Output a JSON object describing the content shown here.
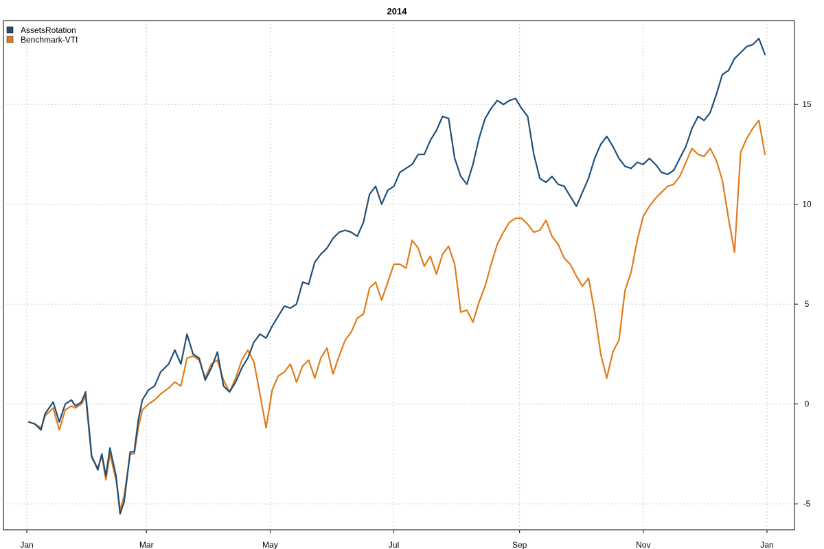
{
  "chart_data": {
    "type": "line",
    "title": "2014",
    "xlabel": "",
    "ylabel": "",
    "x_ticks": [
      "Jan",
      "Mar",
      "May",
      "Jul",
      "Sep",
      "Nov",
      "Jan"
    ],
    "x_tick_dates": [
      "2014-01-01",
      "2014-03-01",
      "2014-05-01",
      "2014-07-01",
      "2014-09-01",
      "2014-11-01",
      "2015-01-01"
    ],
    "xlim": [
      "2014-01-01",
      "2015-01-01"
    ],
    "y_ticks": [
      -5,
      0,
      5,
      10,
      15
    ],
    "y_tick_labels": [
      "-5",
      "0",
      "5",
      "10",
      "15"
    ],
    "ylim": [
      -6.3,
      19.2
    ],
    "y_axis_side": "right",
    "grid": true,
    "legend_position": "top-left",
    "series": [
      {
        "name": "AssetsRotation",
        "color": "#1f4e79",
        "points": [
          [
            "2014-01-02",
            -0.9
          ],
          [
            "2014-01-05",
            -1.0
          ],
          [
            "2014-01-08",
            -1.3
          ],
          [
            "2014-01-10",
            -0.5
          ],
          [
            "2014-01-14",
            0.1
          ],
          [
            "2014-01-17",
            -0.9
          ],
          [
            "2014-01-20",
            0.0
          ],
          [
            "2014-01-23",
            0.2
          ],
          [
            "2014-01-25",
            -0.1
          ],
          [
            "2014-01-28",
            0.1
          ],
          [
            "2014-01-30",
            0.6
          ],
          [
            "2014-02-02",
            -2.6
          ],
          [
            "2014-02-05",
            -3.3
          ],
          [
            "2014-02-07",
            -2.5
          ],
          [
            "2014-02-09",
            -3.6
          ],
          [
            "2014-02-11",
            -2.2
          ],
          [
            "2014-02-14",
            -3.6
          ],
          [
            "2014-02-16",
            -5.5
          ],
          [
            "2014-02-18",
            -4.9
          ],
          [
            "2014-02-21",
            -2.4
          ],
          [
            "2014-02-23",
            -2.4
          ],
          [
            "2014-02-25",
            -0.8
          ],
          [
            "2014-02-27",
            0.2
          ],
          [
            "2014-03-02",
            0.7
          ],
          [
            "2014-03-05",
            0.9
          ],
          [
            "2014-03-08",
            1.6
          ],
          [
            "2014-03-12",
            2.0
          ],
          [
            "2014-03-15",
            2.7
          ],
          [
            "2014-03-18",
            2.0
          ],
          [
            "2014-03-21",
            3.5
          ],
          [
            "2014-03-24",
            2.5
          ],
          [
            "2014-03-27",
            2.3
          ],
          [
            "2014-03-30",
            1.2
          ],
          [
            "2014-04-02",
            1.8
          ],
          [
            "2014-04-05",
            2.6
          ],
          [
            "2014-04-08",
            0.9
          ],
          [
            "2014-04-11",
            0.6
          ],
          [
            "2014-04-14",
            1.1
          ],
          [
            "2014-04-17",
            1.8
          ],
          [
            "2014-04-20",
            2.3
          ],
          [
            "2014-04-23",
            3.1
          ],
          [
            "2014-04-26",
            3.5
          ],
          [
            "2014-04-29",
            3.3
          ],
          [
            "2014-05-02",
            3.9
          ],
          [
            "2014-05-05",
            4.4
          ],
          [
            "2014-05-08",
            4.9
          ],
          [
            "2014-05-11",
            4.8
          ],
          [
            "2014-05-14",
            5.0
          ],
          [
            "2014-05-17",
            6.1
          ],
          [
            "2014-05-20",
            6.0
          ],
          [
            "2014-05-23",
            7.1
          ],
          [
            "2014-05-26",
            7.5
          ],
          [
            "2014-05-29",
            7.8
          ],
          [
            "2014-06-01",
            8.3
          ],
          [
            "2014-06-04",
            8.6
          ],
          [
            "2014-06-07",
            8.7
          ],
          [
            "2014-06-10",
            8.6
          ],
          [
            "2014-06-13",
            8.4
          ],
          [
            "2014-06-16",
            9.1
          ],
          [
            "2014-06-19",
            10.5
          ],
          [
            "2014-06-22",
            10.9
          ],
          [
            "2014-06-25",
            10.0
          ],
          [
            "2014-06-28",
            10.7
          ],
          [
            "2014-07-01",
            10.9
          ],
          [
            "2014-07-04",
            11.6
          ],
          [
            "2014-07-07",
            11.8
          ],
          [
            "2014-07-10",
            12.0
          ],
          [
            "2014-07-13",
            12.5
          ],
          [
            "2014-07-16",
            12.5
          ],
          [
            "2014-07-19",
            13.2
          ],
          [
            "2014-07-22",
            13.7
          ],
          [
            "2014-07-25",
            14.4
          ],
          [
            "2014-07-28",
            14.3
          ],
          [
            "2014-07-31",
            12.3
          ],
          [
            "2014-08-03",
            11.4
          ],
          [
            "2014-08-06",
            11.0
          ],
          [
            "2014-08-09",
            12.0
          ],
          [
            "2014-08-12",
            13.3
          ],
          [
            "2014-08-15",
            14.3
          ],
          [
            "2014-08-18",
            14.8
          ],
          [
            "2014-08-21",
            15.2
          ],
          [
            "2014-08-24",
            15.0
          ],
          [
            "2014-08-27",
            15.2
          ],
          [
            "2014-08-30",
            15.3
          ],
          [
            "2014-09-02",
            14.8
          ],
          [
            "2014-09-05",
            14.4
          ],
          [
            "2014-09-08",
            12.5
          ],
          [
            "2014-09-11",
            11.3
          ],
          [
            "2014-09-14",
            11.1
          ],
          [
            "2014-09-17",
            11.4
          ],
          [
            "2014-09-20",
            11.0
          ],
          [
            "2014-09-23",
            10.9
          ],
          [
            "2014-09-26",
            10.4
          ],
          [
            "2014-09-29",
            9.9
          ],
          [
            "2014-10-02",
            10.6
          ],
          [
            "2014-10-05",
            11.3
          ],
          [
            "2014-10-08",
            12.3
          ],
          [
            "2014-10-11",
            13.0
          ],
          [
            "2014-10-14",
            13.4
          ],
          [
            "2014-10-17",
            12.9
          ],
          [
            "2014-10-20",
            12.3
          ],
          [
            "2014-10-23",
            11.9
          ],
          [
            "2014-10-26",
            11.8
          ],
          [
            "2014-10-29",
            12.1
          ],
          [
            "2014-11-01",
            12.0
          ],
          [
            "2014-11-04",
            12.3
          ],
          [
            "2014-11-07",
            12.0
          ],
          [
            "2014-11-10",
            11.6
          ],
          [
            "2014-11-13",
            11.5
          ],
          [
            "2014-11-16",
            11.7
          ],
          [
            "2014-11-19",
            12.3
          ],
          [
            "2014-11-22",
            12.9
          ],
          [
            "2014-11-25",
            13.8
          ],
          [
            "2014-11-28",
            14.4
          ],
          [
            "2014-12-01",
            14.2
          ],
          [
            "2014-12-04",
            14.6
          ],
          [
            "2014-12-07",
            15.5
          ],
          [
            "2014-12-10",
            16.5
          ],
          [
            "2014-12-13",
            16.7
          ],
          [
            "2014-12-16",
            17.3
          ],
          [
            "2014-12-19",
            17.6
          ],
          [
            "2014-12-22",
            17.9
          ],
          [
            "2014-12-25",
            18.0
          ],
          [
            "2014-12-28",
            18.3
          ],
          [
            "2014-12-31",
            17.5
          ]
        ]
      },
      {
        "name": "Benchmark-VTI",
        "color": "#e07b1a",
        "points": [
          [
            "2014-01-02",
            -0.9
          ],
          [
            "2014-01-05",
            -1.0
          ],
          [
            "2014-01-08",
            -1.2
          ],
          [
            "2014-01-10",
            -0.6
          ],
          [
            "2014-01-14",
            -0.2
          ],
          [
            "2014-01-17",
            -1.3
          ],
          [
            "2014-01-20",
            -0.3
          ],
          [
            "2014-01-23",
            -0.1
          ],
          [
            "2014-01-25",
            -0.2
          ],
          [
            "2014-01-28",
            0.0
          ],
          [
            "2014-01-30",
            0.4
          ],
          [
            "2014-02-02",
            -2.7
          ],
          [
            "2014-02-05",
            -3.2
          ],
          [
            "2014-02-07",
            -2.6
          ],
          [
            "2014-02-09",
            -3.8
          ],
          [
            "2014-02-11",
            -2.5
          ],
          [
            "2014-02-14",
            -3.8
          ],
          [
            "2014-02-16",
            -5.3
          ],
          [
            "2014-02-18",
            -4.6
          ],
          [
            "2014-02-21",
            -2.5
          ],
          [
            "2014-02-23",
            -2.5
          ],
          [
            "2014-02-25",
            -1.2
          ],
          [
            "2014-02-27",
            -0.3
          ],
          [
            "2014-03-02",
            0.0
          ],
          [
            "2014-03-05",
            0.2
          ],
          [
            "2014-03-08",
            0.5
          ],
          [
            "2014-03-12",
            0.8
          ],
          [
            "2014-03-15",
            1.1
          ],
          [
            "2014-03-18",
            0.9
          ],
          [
            "2014-03-21",
            2.3
          ],
          [
            "2014-03-24",
            2.4
          ],
          [
            "2014-03-27",
            2.2
          ],
          [
            "2014-03-30",
            1.3
          ],
          [
            "2014-04-02",
            2.0
          ],
          [
            "2014-04-05",
            2.2
          ],
          [
            "2014-04-08",
            1.2
          ],
          [
            "2014-04-11",
            0.6
          ],
          [
            "2014-04-14",
            1.3
          ],
          [
            "2014-04-17",
            2.2
          ],
          [
            "2014-04-20",
            2.7
          ],
          [
            "2014-04-23",
            2.1
          ],
          [
            "2014-04-26",
            0.5
          ],
          [
            "2014-04-29",
            -1.2
          ],
          [
            "2014-05-02",
            0.7
          ],
          [
            "2014-05-05",
            1.4
          ],
          [
            "2014-05-08",
            1.6
          ],
          [
            "2014-05-11",
            2.0
          ],
          [
            "2014-05-14",
            1.1
          ],
          [
            "2014-05-17",
            1.9
          ],
          [
            "2014-05-20",
            2.2
          ],
          [
            "2014-05-23",
            1.3
          ],
          [
            "2014-05-26",
            2.3
          ],
          [
            "2014-05-29",
            2.8
          ],
          [
            "2014-06-01",
            1.5
          ],
          [
            "2014-06-04",
            2.4
          ],
          [
            "2014-06-07",
            3.2
          ],
          [
            "2014-06-10",
            3.6
          ],
          [
            "2014-06-13",
            4.3
          ],
          [
            "2014-06-16",
            4.5
          ],
          [
            "2014-06-19",
            5.8
          ],
          [
            "2014-06-22",
            6.1
          ],
          [
            "2014-06-25",
            5.2
          ],
          [
            "2014-06-28",
            6.1
          ],
          [
            "2014-07-01",
            7.0
          ],
          [
            "2014-07-04",
            7.0
          ],
          [
            "2014-07-07",
            6.8
          ],
          [
            "2014-07-10",
            8.2
          ],
          [
            "2014-07-13",
            7.8
          ],
          [
            "2014-07-16",
            6.9
          ],
          [
            "2014-07-19",
            7.4
          ],
          [
            "2014-07-22",
            6.5
          ],
          [
            "2014-07-25",
            7.5
          ],
          [
            "2014-07-28",
            7.9
          ],
          [
            "2014-07-31",
            7.0
          ],
          [
            "2014-08-03",
            4.6
          ],
          [
            "2014-08-06",
            4.7
          ],
          [
            "2014-08-09",
            4.1
          ],
          [
            "2014-08-12",
            5.1
          ],
          [
            "2014-08-15",
            5.9
          ],
          [
            "2014-08-18",
            7.0
          ],
          [
            "2014-08-21",
            8.0
          ],
          [
            "2014-08-24",
            8.6
          ],
          [
            "2014-08-27",
            9.1
          ],
          [
            "2014-08-30",
            9.3
          ],
          [
            "2014-09-02",
            9.3
          ],
          [
            "2014-09-05",
            9.0
          ],
          [
            "2014-09-08",
            8.6
          ],
          [
            "2014-09-11",
            8.7
          ],
          [
            "2014-09-14",
            9.2
          ],
          [
            "2014-09-17",
            8.4
          ],
          [
            "2014-09-20",
            8.0
          ],
          [
            "2014-09-23",
            7.3
          ],
          [
            "2014-09-26",
            7.0
          ],
          [
            "2014-09-29",
            6.4
          ],
          [
            "2014-10-02",
            5.9
          ],
          [
            "2014-10-05",
            6.3
          ],
          [
            "2014-10-08",
            4.6
          ],
          [
            "2014-10-11",
            2.5
          ],
          [
            "2014-10-14",
            1.3
          ],
          [
            "2014-10-17",
            2.6
          ],
          [
            "2014-10-20",
            3.2
          ],
          [
            "2014-10-23",
            5.7
          ],
          [
            "2014-10-26",
            6.6
          ],
          [
            "2014-10-29",
            8.2
          ],
          [
            "2014-11-01",
            9.4
          ],
          [
            "2014-11-04",
            9.9
          ],
          [
            "2014-11-07",
            10.3
          ],
          [
            "2014-11-10",
            10.6
          ],
          [
            "2014-11-13",
            10.9
          ],
          [
            "2014-11-16",
            11.0
          ],
          [
            "2014-11-19",
            11.4
          ],
          [
            "2014-11-22",
            12.1
          ],
          [
            "2014-11-25",
            12.8
          ],
          [
            "2014-11-28",
            12.5
          ],
          [
            "2014-12-01",
            12.4
          ],
          [
            "2014-12-04",
            12.8
          ],
          [
            "2014-12-07",
            12.2
          ],
          [
            "2014-12-10",
            11.2
          ],
          [
            "2014-12-13",
            9.3
          ],
          [
            "2014-12-16",
            7.6
          ],
          [
            "2014-12-19",
            12.6
          ],
          [
            "2014-12-22",
            13.3
          ],
          [
            "2014-12-25",
            13.8
          ],
          [
            "2014-12-28",
            14.2
          ],
          [
            "2014-12-31",
            12.5
          ]
        ]
      }
    ]
  }
}
